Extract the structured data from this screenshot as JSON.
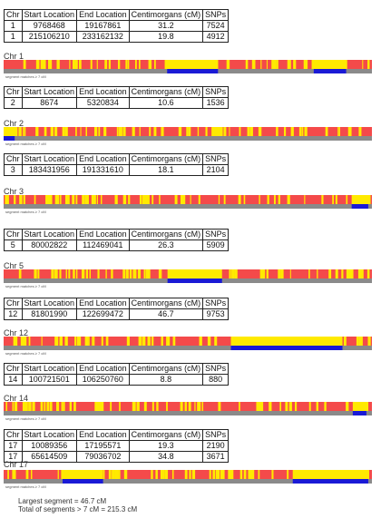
{
  "table_headers": [
    "Chr",
    "Start Location",
    "End Location",
    "Centimorgans (cM)",
    "SNPs"
  ],
  "sections": [
    {
      "chr_label": "Chr 1",
      "rows": [
        {
          "chr": "1",
          "start": "9768468",
          "end": "19167861",
          "cm": "31.2",
          "snps": "7524"
        },
        {
          "chr": "1",
          "start": "215106210",
          "end": "233162132",
          "cm": "19.8",
          "snps": "4912"
        }
      ],
      "scale_text": "segment matches ≥ 7 cM",
      "blue": [
        [
          0.444,
          0.582
        ],
        [
          0.842,
          0.93
        ]
      ],
      "yellow": [
        [
          0.444,
          0.582
        ],
        [
          0.842,
          0.93
        ]
      ],
      "greenish": []
    },
    {
      "chr_label": "Chr 2",
      "rows": [
        {
          "chr": "2",
          "start": "8674",
          "end": "5320834",
          "cm": "10.6",
          "snps": "1536"
        }
      ],
      "scale_text": "segment matches ≥ 7 cM",
      "blue": [
        [
          0.0,
          0.03
        ]
      ],
      "yellow": [
        [
          0.0,
          0.03
        ]
      ],
      "greenish": []
    },
    {
      "chr_label": "Chr 3",
      "rows": [
        {
          "chr": "3",
          "start": "183431956",
          "end": "191331610",
          "cm": "18.1",
          "snps": "2104"
        }
      ],
      "scale_text": "segment matches ≥ 7 cM",
      "blue": [
        [
          0.945,
          0.99
        ]
      ],
      "yellow": [
        [
          0.945,
          0.99
        ]
      ],
      "greenish": []
    },
    {
      "chr_label": "Chr 5",
      "rows": [
        {
          "chr": "5",
          "start": "80002822",
          "end": "112469041",
          "cm": "26.3",
          "snps": "5909"
        }
      ],
      "scale_text": "segment matches ≥ 7 cM",
      "blue": [
        [
          0.445,
          0.593
        ]
      ],
      "yellow": [
        [
          0.445,
          0.593
        ]
      ],
      "greenish": []
    },
    {
      "chr_label": "Chr 12",
      "rows": [
        {
          "chr": "12",
          "start": "81801990",
          "end": "122699472",
          "cm": "46.7",
          "snps": "9753"
        }
      ],
      "scale_text": "segment matches ≥ 7 cM",
      "blue": [
        [
          0.617,
          0.92
        ]
      ],
      "yellow": [
        [
          0.617,
          0.92
        ]
      ],
      "greenish": []
    },
    {
      "chr_label": "Chr 14",
      "rows": [
        {
          "chr": "14",
          "start": "100721501",
          "end": "106250760",
          "cm": "8.8",
          "snps": "880"
        }
      ],
      "scale_text": "segment matches ≥ 7 cM",
      "blue": [
        [
          0.948,
          0.985
        ]
      ],
      "yellow": [
        [
          0.948,
          0.985
        ]
      ],
      "greenish": []
    },
    {
      "chr_label": "Chr 17",
      "rows": [
        {
          "chr": "17",
          "start": "10089356",
          "end": "17195571",
          "cm": "19.3",
          "snps": "2190"
        },
        {
          "chr": "17",
          "start": "65614509",
          "end": "79036702",
          "cm": "34.8",
          "snps": "3671"
        }
      ],
      "scale_text": "segment matches ≥ 7 cM",
      "blue": [
        [
          0.16,
          0.27
        ],
        [
          0.785,
          0.99
        ]
      ],
      "yellow": [
        [
          0.16,
          0.27
        ],
        [
          0.785,
          0.99
        ]
      ],
      "greenish": []
    }
  ],
  "summary": {
    "largest": "Largest segment = 46.7 cM",
    "total": "Total of segments > 7 cM = 215.3 cM"
  },
  "colors": {
    "red": "#f44a4a",
    "yellow": "#ffea00",
    "blue": "#1a1ad6",
    "gray": "#8a8a8a"
  }
}
